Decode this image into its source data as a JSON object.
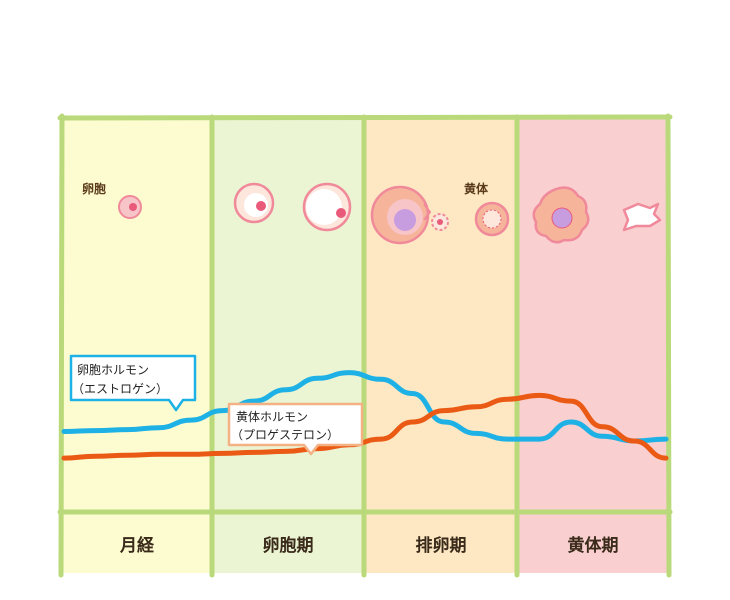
{
  "phases": [
    {
      "label": "月経",
      "fill": "#fdfcd1"
    },
    {
      "label": "卵胞期",
      "fill": "#ebf4d3"
    },
    {
      "label": "排卵期",
      "fill": "#fde8c3"
    },
    {
      "label": "黄体期",
      "fill": "#f9cfd0"
    }
  ],
  "colors": {
    "border": "#b9d97a",
    "estrogen": "#1eb1e6",
    "progesterone": "#ea5a14",
    "follicle_outer": "#f08a9a",
    "follicle_core": "#e95a7a"
  },
  "labels": {
    "follicle": "卵胞",
    "corpus_luteum": "黄体",
    "estrogen_line1": "卵胞ホルモン",
    "estrogen_line2": "（エストロゲン）",
    "progesterone_line1": "黄体ホルモン",
    "progesterone_line2": "（プロゲステロン）"
  },
  "chart_data": {
    "type": "line",
    "series": [
      {
        "name": "卵胞ホルモン（エストロゲン）",
        "values": [
          0.3,
          0.31,
          0.32,
          0.34,
          0.42,
          0.52,
          0.62,
          0.74,
          0.86,
          0.92,
          0.85,
          0.7,
          0.4,
          0.28,
          0.22,
          0.22,
          0.4,
          0.25,
          0.2,
          0.22
        ]
      },
      {
        "name": "黄体ホルモン（プロゲステロン）",
        "values": [
          0.02,
          0.04,
          0.05,
          0.06,
          0.06,
          0.07,
          0.08,
          0.09,
          0.12,
          0.16,
          0.22,
          0.4,
          0.52,
          0.56,
          0.64,
          0.68,
          0.62,
          0.35,
          0.2,
          0.02
        ]
      }
    ]
  }
}
